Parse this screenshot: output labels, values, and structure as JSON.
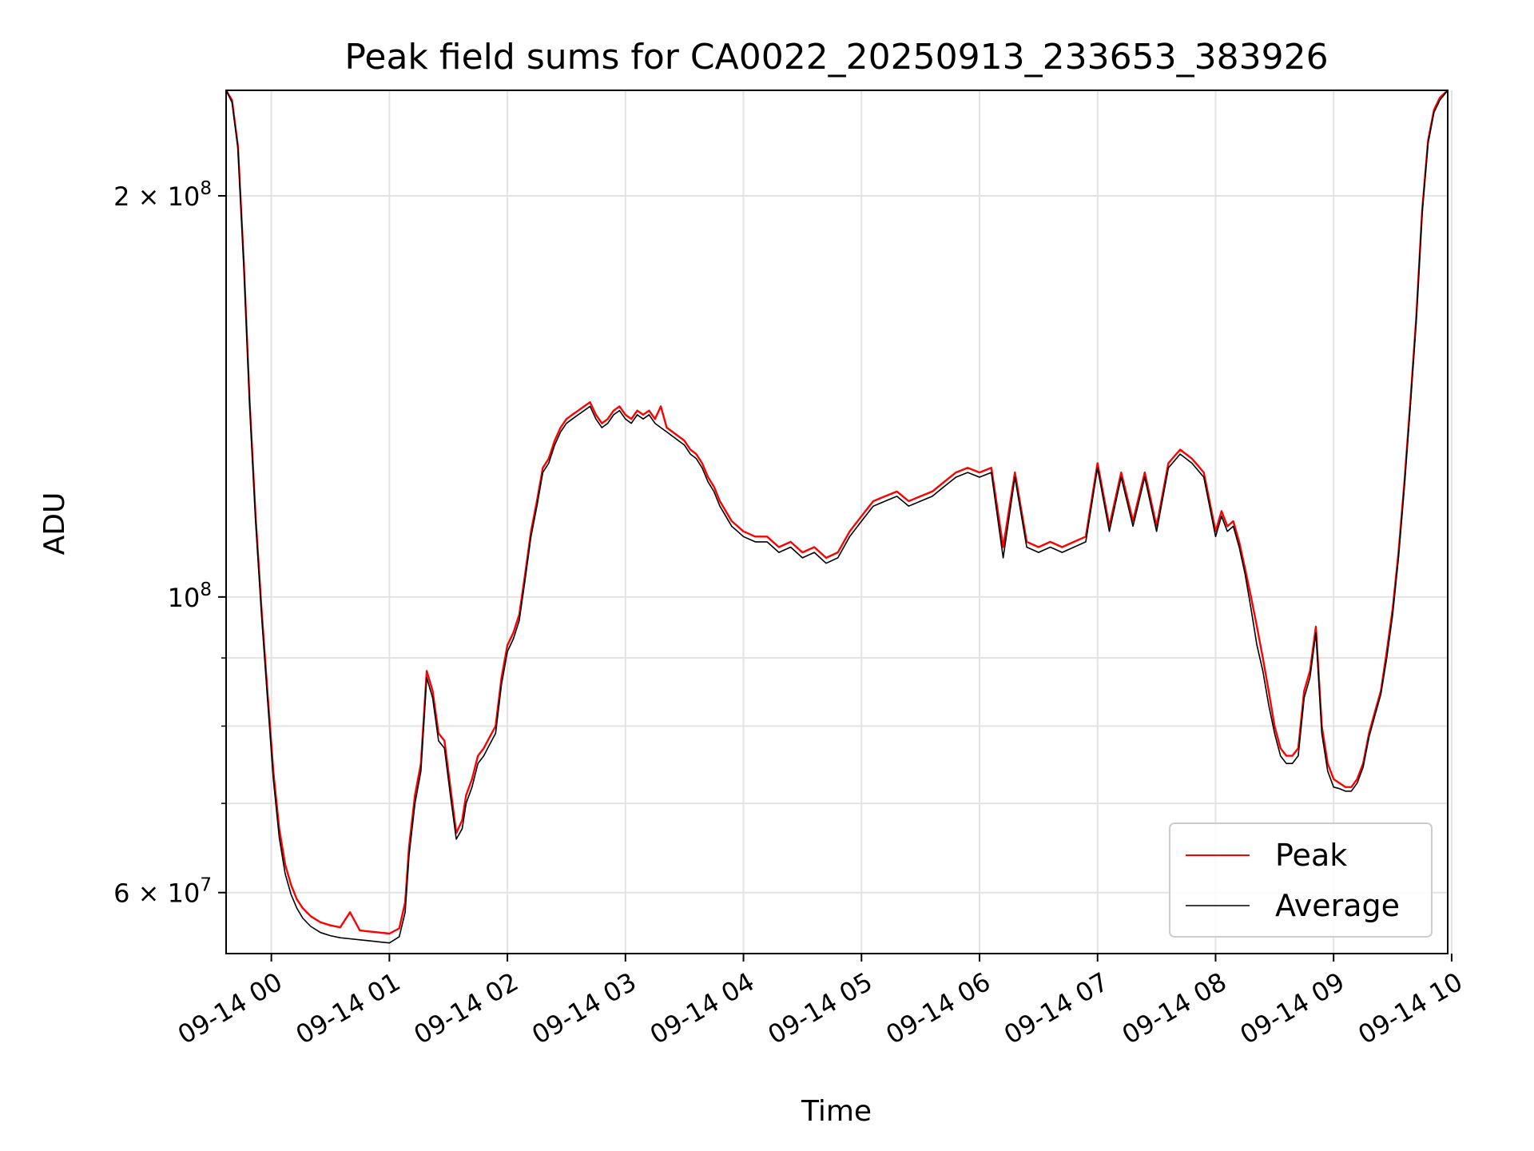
{
  "chart_data": {
    "type": "line",
    "title": "Peak field sums for CA0022_20250913_233653_383926",
    "xlabel": "Time",
    "ylabel": "ADU",
    "yscale": "log",
    "grid": true,
    "legend_placement": "bottom-right",
    "xlim": [
      "2025-09-13 23:37",
      "2025-09-14 09:58"
    ],
    "ylim": [
      54000000,
      240000000
    ],
    "x_ticks": [
      {
        "value": "2025-09-14 00:00",
        "label": "09-14 00"
      },
      {
        "value": "2025-09-14 01:00",
        "label": "09-14 01"
      },
      {
        "value": "2025-09-14 02:00",
        "label": "09-14 02"
      },
      {
        "value": "2025-09-14 03:00",
        "label": "09-14 03"
      },
      {
        "value": "2025-09-14 04:00",
        "label": "09-14 04"
      },
      {
        "value": "2025-09-14 05:00",
        "label": "09-14 05"
      },
      {
        "value": "2025-09-14 06:00",
        "label": "09-14 06"
      },
      {
        "value": "2025-09-14 07:00",
        "label": "09-14 07"
      },
      {
        "value": "2025-09-14 08:00",
        "label": "09-14 08"
      },
      {
        "value": "2025-09-14 09:00",
        "label": "09-14 09"
      },
      {
        "value": "2025-09-14 10:00",
        "label": "09-14 10"
      }
    ],
    "y_major_ticks": [
      {
        "value": 60000000,
        "base": "6 × 10",
        "exp": "7"
      },
      {
        "value": 100000000,
        "base": "10",
        "exp": "8"
      },
      {
        "value": 200000000,
        "base": "2 × 10",
        "exp": "8"
      }
    ],
    "y_minor_ticks": [
      70000000,
      80000000,
      90000000
    ],
    "x": [
      "2025-09-13 23:37",
      "2025-09-13 23:40",
      "2025-09-13 23:43",
      "2025-09-13 23:46",
      "2025-09-13 23:49",
      "2025-09-13 23:52",
      "2025-09-13 23:55",
      "2025-09-13 23:58",
      "2025-09-14 00:01",
      "2025-09-14 00:04",
      "2025-09-14 00:07",
      "2025-09-14 00:10",
      "2025-09-14 00:13",
      "2025-09-14 00:16",
      "2025-09-14 00:20",
      "2025-09-14 00:25",
      "2025-09-14 00:30",
      "2025-09-14 00:35",
      "2025-09-14 00:40",
      "2025-09-14 00:45",
      "2025-09-14 00:50",
      "2025-09-14 00:55",
      "2025-09-14 01:00",
      "2025-09-14 01:05",
      "2025-09-14 01:08",
      "2025-09-14 01:10",
      "2025-09-14 01:13",
      "2025-09-14 01:16",
      "2025-09-14 01:19",
      "2025-09-14 01:22",
      "2025-09-14 01:25",
      "2025-09-14 01:28",
      "2025-09-14 01:31",
      "2025-09-14 01:34",
      "2025-09-14 01:37",
      "2025-09-14 01:39",
      "2025-09-14 01:42",
      "2025-09-14 01:45",
      "2025-09-14 01:48",
      "2025-09-14 01:51",
      "2025-09-14 01:54",
      "2025-09-14 01:57",
      "2025-09-14 02:00",
      "2025-09-14 02:03",
      "2025-09-14 02:06",
      "2025-09-14 02:09",
      "2025-09-14 02:12",
      "2025-09-14 02:15",
      "2025-09-14 02:18",
      "2025-09-14 02:21",
      "2025-09-14 02:24",
      "2025-09-14 02:27",
      "2025-09-14 02:30",
      "2025-09-14 02:33",
      "2025-09-14 02:36",
      "2025-09-14 02:39",
      "2025-09-14 02:42",
      "2025-09-14 02:45",
      "2025-09-14 02:48",
      "2025-09-14 02:51",
      "2025-09-14 02:54",
      "2025-09-14 02:57",
      "2025-09-14 03:00",
      "2025-09-14 03:03",
      "2025-09-14 03:06",
      "2025-09-14 03:09",
      "2025-09-14 03:12",
      "2025-09-14 03:15",
      "2025-09-14 03:18",
      "2025-09-14 03:21",
      "2025-09-14 03:24",
      "2025-09-14 03:27",
      "2025-09-14 03:30",
      "2025-09-14 03:33",
      "2025-09-14 03:36",
      "2025-09-14 03:39",
      "2025-09-14 03:42",
      "2025-09-14 03:45",
      "2025-09-14 03:48",
      "2025-09-14 03:51",
      "2025-09-14 03:54",
      "2025-09-14 03:57",
      "2025-09-14 04:00",
      "2025-09-14 04:06",
      "2025-09-14 04:12",
      "2025-09-14 04:18",
      "2025-09-14 04:24",
      "2025-09-14 04:30",
      "2025-09-14 04:36",
      "2025-09-14 04:42",
      "2025-09-14 04:48",
      "2025-09-14 04:54",
      "2025-09-14 05:00",
      "2025-09-14 05:06",
      "2025-09-14 05:12",
      "2025-09-14 05:18",
      "2025-09-14 05:24",
      "2025-09-14 05:30",
      "2025-09-14 05:36",
      "2025-09-14 05:42",
      "2025-09-14 05:48",
      "2025-09-14 05:54",
      "2025-09-14 06:00",
      "2025-09-14 06:06",
      "2025-09-14 06:12",
      "2025-09-14 06:18",
      "2025-09-14 06:24",
      "2025-09-14 06:30",
      "2025-09-14 06:36",
      "2025-09-14 06:42",
      "2025-09-14 06:48",
      "2025-09-14 06:54",
      "2025-09-14 07:00",
      "2025-09-14 07:06",
      "2025-09-14 07:12",
      "2025-09-14 07:18",
      "2025-09-14 07:24",
      "2025-09-14 07:30",
      "2025-09-14 07:36",
      "2025-09-14 07:42",
      "2025-09-14 07:48",
      "2025-09-14 07:54",
      "2025-09-14 08:00",
      "2025-09-14 08:03",
      "2025-09-14 08:06",
      "2025-09-14 08:09",
      "2025-09-14 08:12",
      "2025-09-14 08:15",
      "2025-09-14 08:18",
      "2025-09-14 08:21",
      "2025-09-14 08:24",
      "2025-09-14 08:27",
      "2025-09-14 08:30",
      "2025-09-14 08:33",
      "2025-09-14 08:36",
      "2025-09-14 08:39",
      "2025-09-14 08:42",
      "2025-09-14 08:45",
      "2025-09-14 08:48",
      "2025-09-14 08:51",
      "2025-09-14 08:54",
      "2025-09-14 08:57",
      "2025-09-14 09:00",
      "2025-09-14 09:03",
      "2025-09-14 09:06",
      "2025-09-14 09:09",
      "2025-09-14 09:12",
      "2025-09-14 09:15",
      "2025-09-14 09:18",
      "2025-09-14 09:21",
      "2025-09-14 09:24",
      "2025-09-14 09:27",
      "2025-09-14 09:30",
      "2025-09-14 09:33",
      "2025-09-14 09:36",
      "2025-09-14 09:39",
      "2025-09-14 09:42",
      "2025-09-14 09:45",
      "2025-09-14 09:48",
      "2025-09-14 09:51",
      "2025-09-14 09:54",
      "2025-09-14 09:58"
    ],
    "series": [
      {
        "name": "Peak",
        "color": "#ff0000",
        "values": [
          240000000,
          236000000,
          218000000,
          178000000,
          140000000,
          115000000,
          98000000,
          85000000,
          74000000,
          67000000,
          63000000,
          60800000,
          59300000,
          58400000,
          57600000,
          57000000,
          56700000,
          56500000,
          58000000,
          56200000,
          56100000,
          56000000,
          55900000,
          56400000,
          59000000,
          65000000,
          71000000,
          75000000,
          88000000,
          85000000,
          79000000,
          78000000,
          72000000,
          66500000,
          68000000,
          71000000,
          73000000,
          76000000,
          77000000,
          78500000,
          80000000,
          87000000,
          92000000,
          94000000,
          97000000,
          104000000,
          112000000,
          118000000,
          125000000,
          127000000,
          131000000,
          134000000,
          136000000,
          137000000,
          138000000,
          139000000,
          140000000,
          137000000,
          135000000,
          136000000,
          138000000,
          139000000,
          137000000,
          136000000,
          138000000,
          137000000,
          138000000,
          136000000,
          139000000,
          134000000,
          133000000,
          132000000,
          131000000,
          129000000,
          128000000,
          126000000,
          123000000,
          121000000,
          118000000,
          116000000,
          114000000,
          113000000,
          112000000,
          111000000,
          111000000,
          109000000,
          110000000,
          108000000,
          109000000,
          107000000,
          108000000,
          112000000,
          115000000,
          118000000,
          119000000,
          120000000,
          118000000,
          119000000,
          120000000,
          122000000,
          124000000,
          125000000,
          124000000,
          125000000,
          109000000,
          124000000,
          110000000,
          109000000,
          110000000,
          109000000,
          110000000,
          111000000,
          126000000,
          113000000,
          124000000,
          114000000,
          124000000,
          113000000,
          126000000,
          129000000,
          127000000,
          124000000,
          112000000,
          116000000,
          113000000,
          114000000,
          110000000,
          105000000,
          100000000,
          95000000,
          90000000,
          85000000,
          80000000,
          77000000,
          76000000,
          76000000,
          77000000,
          85000000,
          88000000,
          95000000,
          80000000,
          75000000,
          73000000,
          72500000,
          72000000,
          72000000,
          73000000,
          75000000,
          79000000,
          82000000,
          85000000,
          91000000,
          98000000,
          108000000,
          122000000,
          140000000,
          162000000,
          195000000,
          220000000,
          232000000,
          237000000,
          240000000
        ]
      },
      {
        "name": "Average",
        "color": "#000000",
        "values": [
          240000000,
          235000000,
          217000000,
          177000000,
          139000000,
          114000000,
          97000000,
          84000000,
          73000000,
          66000000,
          62000000,
          59800000,
          58400000,
          57400000,
          56600000,
          56000000,
          55700000,
          55500000,
          55400000,
          55300000,
          55200000,
          55100000,
          55000000,
          55600000,
          58000000,
          64000000,
          70000000,
          74000000,
          87000000,
          84000000,
          78000000,
          77000000,
          71000000,
          65800000,
          67000000,
          70000000,
          72000000,
          75000000,
          76000000,
          77500000,
          79000000,
          86000000,
          91000000,
          93000000,
          96000000,
          103000000,
          111000000,
          117000000,
          124000000,
          126000000,
          130000000,
          133000000,
          135000000,
          136000000,
          137000000,
          138000000,
          139000000,
          136000000,
          134000000,
          135000000,
          137000000,
          138000000,
          136000000,
          135000000,
          137000000,
          136000000,
          137000000,
          135000000,
          134000000,
          133000000,
          132000000,
          131000000,
          130000000,
          128000000,
          127000000,
          125000000,
          122000000,
          120000000,
          117000000,
          115000000,
          113000000,
          112000000,
          111000000,
          110000000,
          110000000,
          108000000,
          109000000,
          107000000,
          108000000,
          106000000,
          107000000,
          111000000,
          114000000,
          117000000,
          118000000,
          119000000,
          117000000,
          118000000,
          119000000,
          121000000,
          123000000,
          124000000,
          123000000,
          124000000,
          107000000,
          123000000,
          109000000,
          108000000,
          109000000,
          108000000,
          109000000,
          110000000,
          125000000,
          112000000,
          123000000,
          113000000,
          123000000,
          112000000,
          125000000,
          128000000,
          126000000,
          123000000,
          111000000,
          115000000,
          112000000,
          113000000,
          109000000,
          104000000,
          98000000,
          92000000,
          88000000,
          83000000,
          79000000,
          76000000,
          75000000,
          75000000,
          76000000,
          84000000,
          87000000,
          94000000,
          79000000,
          74000000,
          72000000,
          71800000,
          71500000,
          71500000,
          72500000,
          74500000,
          78500000,
          81500000,
          84500000,
          90000000,
          97000000,
          107000000,
          121000000,
          139000000,
          161000000,
          194000000,
          219000000,
          231000000,
          236000000,
          240000000
        ]
      }
    ]
  }
}
